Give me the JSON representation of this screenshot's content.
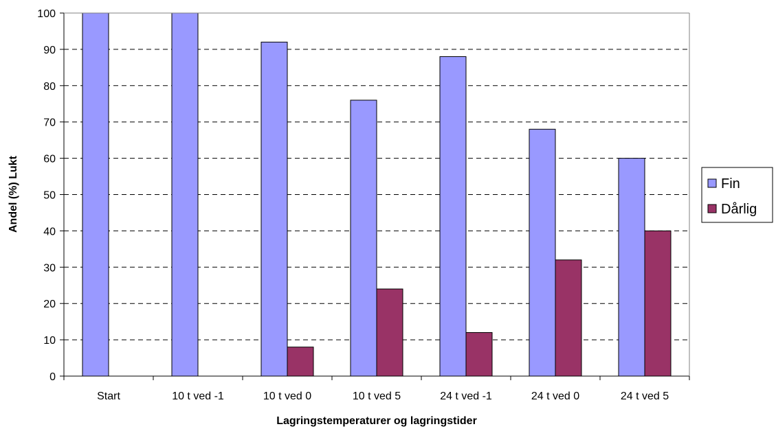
{
  "chart_data": {
    "type": "bar",
    "categories": [
      "Start",
      "10 t ved -1",
      "10 t ved 0",
      "10 t ved 5",
      "24 t ved -1",
      "24 t ved 0",
      "24 t ved 5"
    ],
    "series": [
      {
        "name": "Fin",
        "values": [
          100,
          100,
          92,
          76,
          88,
          68,
          60
        ],
        "color": "#9999ff"
      },
      {
        "name": "Dårlig",
        "values": [
          0,
          0,
          8,
          24,
          12,
          32,
          40
        ],
        "color": "#993366"
      }
    ],
    "title": "",
    "xlabel": "Lagringstemperaturer og lagringstider",
    "ylabel": "Andel (%) Lukt",
    "ylim": [
      0,
      100
    ],
    "yticks": [
      0,
      10,
      20,
      30,
      40,
      50,
      60,
      70,
      80,
      90,
      100
    ],
    "grid": "horizontal dashed",
    "legend_position": "right"
  }
}
